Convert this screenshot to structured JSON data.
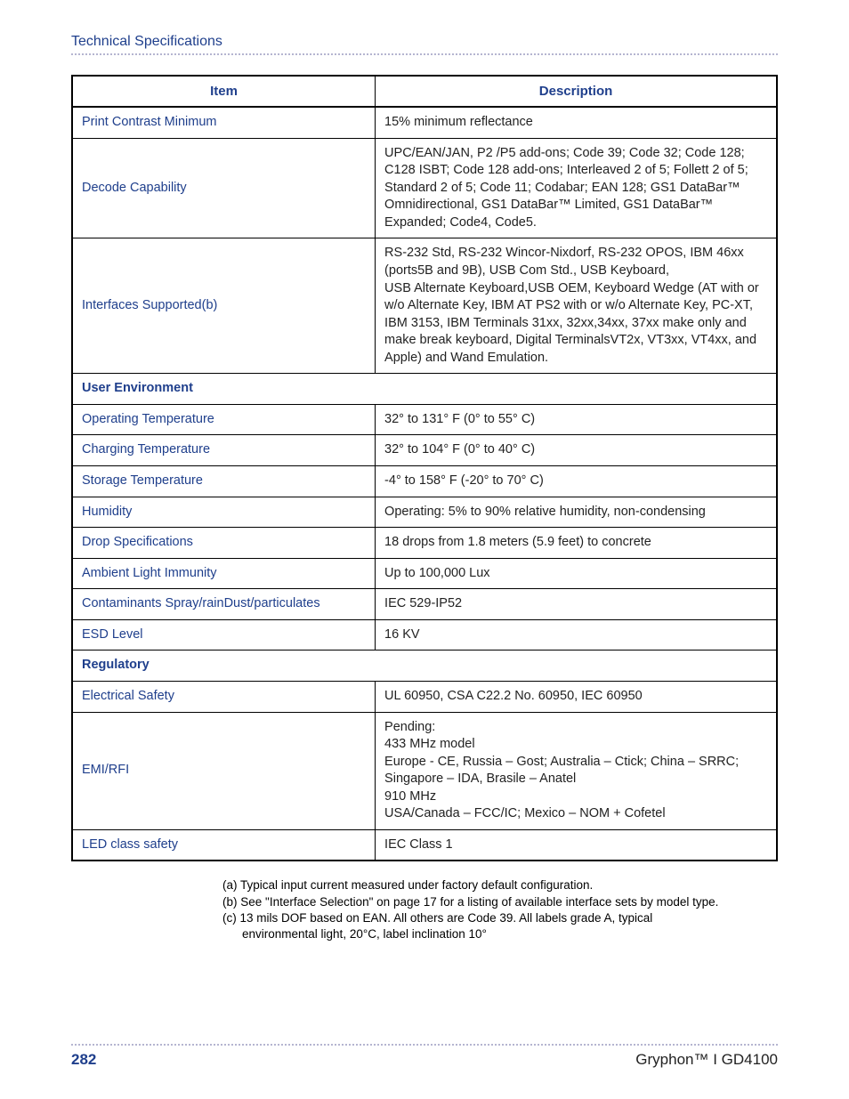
{
  "header": {
    "title": "Technical Specifications"
  },
  "table": {
    "headers": {
      "item": "Item",
      "description": "Description"
    },
    "rows": [
      {
        "type": "data",
        "item": "Print Contrast Minimum",
        "desc": "15% minimum reflectance"
      },
      {
        "type": "data",
        "item": "Decode Capability",
        "desc": "UPC/EAN/JAN, P2 /P5 add-ons; Code 39; Code 32; Code 128; C128 ISBT; Code 128 add-ons; Interleaved 2 of 5; Follett 2 of 5; Standard 2 of 5; Code 11; Codabar; EAN 128; GS1 DataBar™ Omnidirectional, GS1 DataBar™ Limited, GS1 DataBar™ Expanded; Code4, Code5."
      },
      {
        "type": "data",
        "item": "Interfaces Supported(b)",
        "desc": "RS-232 Std, RS-232 Wincor-Nixdorf, RS-232 OPOS, IBM 46xx (ports5B and 9B), USB Com Std., USB Keyboard,\nUSB Alternate Keyboard,USB OEM, Keyboard Wedge (AT with or\nw/o Alternate Key, IBM AT PS2 with or w/o Alternate Key, PC-XT, IBM 3153, IBM Terminals 31xx, 32xx,34xx, 37xx make only and make break keyboard, Digital TerminalsVT2x, VT3xx, VT4xx, and Apple) and Wand Emulation."
      },
      {
        "type": "section",
        "label": "User Environment"
      },
      {
        "type": "data",
        "item": "Operating Temperature",
        "desc": "32° to 131° F (0° to 55° C)"
      },
      {
        "type": "data",
        "item": "Charging Temperature",
        "desc": "32° to 104° F (0° to 40° C)"
      },
      {
        "type": "data",
        "item": "Storage Temperature",
        "desc": "-4° to 158° F (-20° to 70° C)"
      },
      {
        "type": "data",
        "item": "Humidity",
        "desc": "Operating: 5% to 90% relative humidity, non-condensing"
      },
      {
        "type": "data",
        "item": "Drop Specifications",
        "desc": "18 drops from 1.8 meters (5.9 feet) to concrete"
      },
      {
        "type": "data",
        "item": "Ambient Light Immunity",
        "desc": "Up to 100,000 Lux"
      },
      {
        "type": "data",
        "item": "Contaminants Spray/rainDust/particulates",
        "desc": "IEC 529-IP52"
      },
      {
        "type": "data",
        "item": "ESD Level",
        "desc": "16 KV"
      },
      {
        "type": "section",
        "label": "Regulatory"
      },
      {
        "type": "data",
        "item": "Electrical Safety",
        "desc": "UL 60950, CSA C22.2 No. 60950, IEC 60950"
      },
      {
        "type": "data",
        "item": "EMI/RFI",
        "desc": "Pending:\n433 MHz model\nEurope - CE, Russia – Gost; Australia – Ctick; China – SRRC; Singapore – IDA, Brasile – Anatel\n910 MHz\nUSA/Canada – FCC/IC; Mexico – NOM + Cofetel"
      },
      {
        "type": "data",
        "item": "LED class safety",
        "desc": "IEC Class 1"
      }
    ]
  },
  "footnotes": {
    "a": "(a) Typical input current measured under  factory default configuration.",
    "b": "(b) See \"Interface Selection\" on page 17 for a listing of available interface sets by model type.",
    "c1": "(c) 13 mils DOF based on EAN. All others are Code 39. All labels grade A, typical",
    "c2": "environmental light, 20°C, label inclination 10°"
  },
  "footer": {
    "page": "282",
    "title": "Gryphon™ I GD4100"
  }
}
